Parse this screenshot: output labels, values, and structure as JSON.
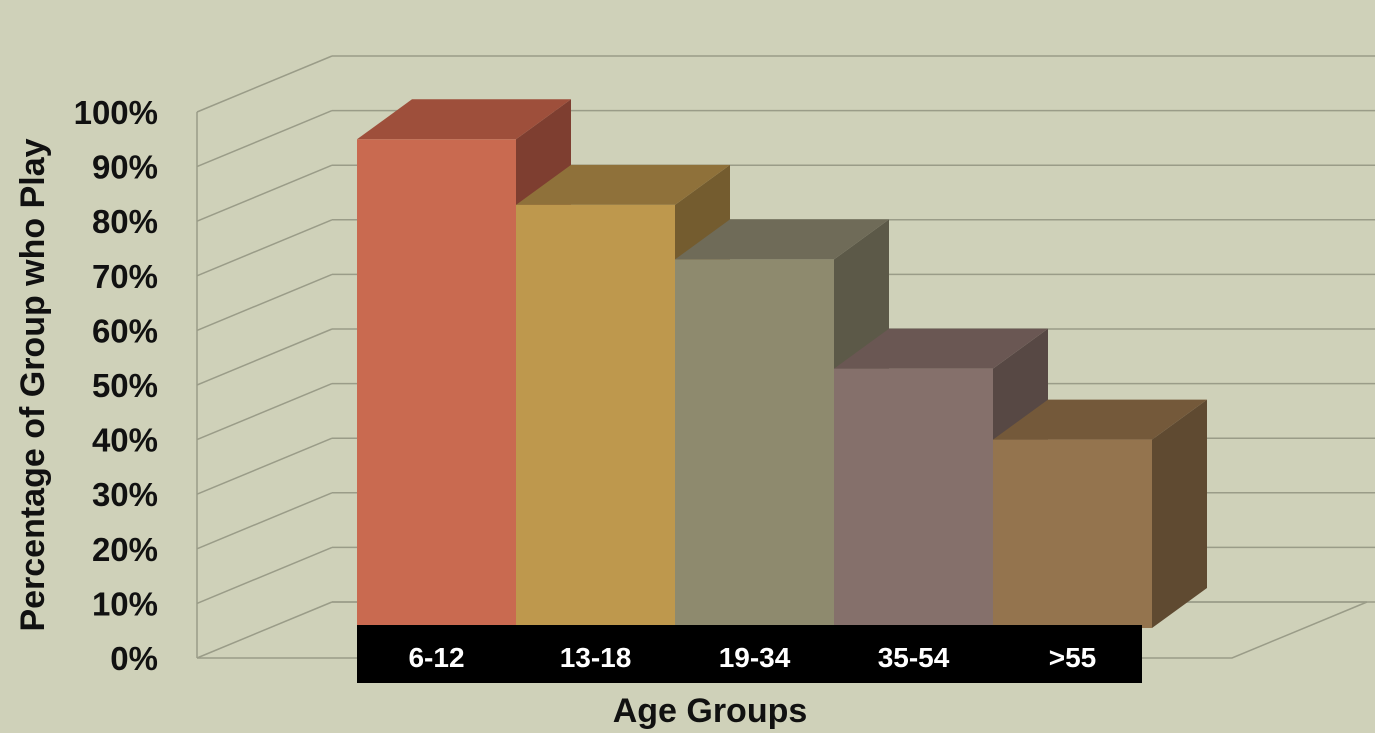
{
  "chart_data": {
    "type": "bar",
    "categories": [
      "6-12",
      "13-18",
      "19-34",
      "35-54",
      ">55"
    ],
    "values": [
      95,
      83,
      73,
      53,
      40
    ],
    "xlabel": "Age Groups",
    "ylabel": "Percentage of Group who Play",
    "ylim": [
      0,
      100
    ],
    "yticks": [
      "0%",
      "10%",
      "20%",
      "30%",
      "40%",
      "50%",
      "60%",
      "70%",
      "80%",
      "90%",
      "100%"
    ],
    "grid": true,
    "legend": "none",
    "colors": {
      "background": "#cfd1b9",
      "bars": [
        {
          "front": "#c96a50",
          "top": "#9e4f3b",
          "side": "#7e3e30"
        },
        {
          "front": "#be984d",
          "top": "#8f713a",
          "side": "#745c2f"
        },
        {
          "front": "#8e8a6e",
          "top": "#6f6b58",
          "side": "#5c5948"
        },
        {
          "front": "#85706b",
          "top": "#6a5753",
          "side": "#574844"
        },
        {
          "front": "#94744e",
          "top": "#74593a",
          "side": "#5f4a31"
        }
      ],
      "label_band": "#000000"
    }
  }
}
